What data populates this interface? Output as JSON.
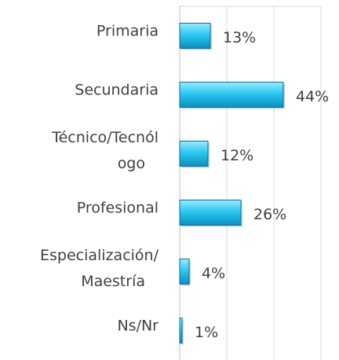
{
  "chart_data": {
    "type": "bar",
    "orientation": "horizontal",
    "categories": [
      [
        "Primaria"
      ],
      [
        "Secundaria"
      ],
      [
        "Técnico/Tecnól",
        "ogo"
      ],
      [
        "Profesional"
      ],
      [
        "Especialización/",
        "Maestría"
      ],
      [
        "Ns/Nr"
      ]
    ],
    "values": [
      13,
      44,
      12,
      26,
      4,
      1
    ],
    "value_labels": [
      "13%",
      "44%",
      "12%",
      "26%",
      "4%",
      "1%"
    ],
    "color": "#22c4ee",
    "xlim": [
      0,
      60
    ],
    "xticks": [
      0,
      20,
      40,
      60
    ],
    "grid": true
  }
}
